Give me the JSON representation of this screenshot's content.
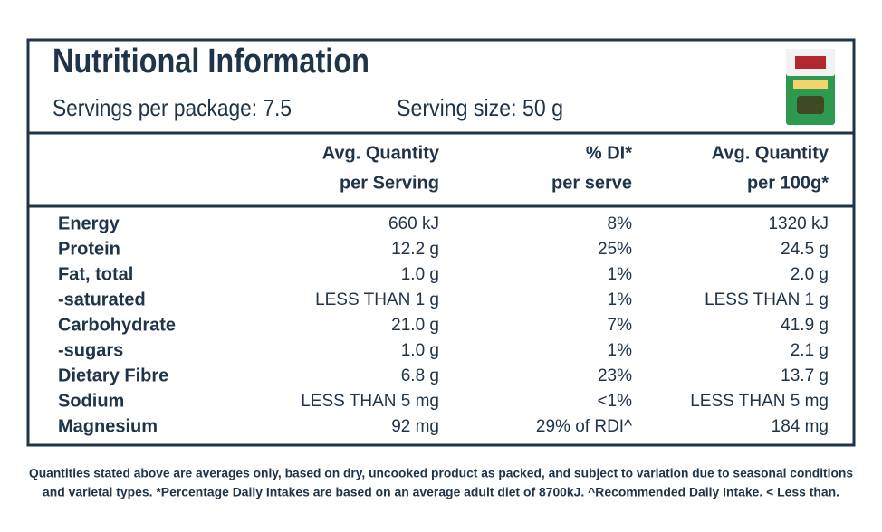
{
  "header": {
    "title": "Nutritional Information",
    "servings": "Servings per package: 7.5",
    "serving_size": "Serving size: 50 g"
  },
  "table": {
    "columns": [
      [
        "Avg. Quantity",
        "per Serving"
      ],
      [
        "% DI*",
        "per serve"
      ],
      [
        "Avg. Quantity",
        "per 100g*"
      ]
    ],
    "rows": [
      [
        "Energy",
        "660 kJ",
        "8%",
        "1320 kJ"
      ],
      [
        "Protein",
        "12.2 g",
        "25%",
        "24.5 g"
      ],
      [
        "Fat, total",
        "1.0 g",
        "1%",
        "2.0 g"
      ],
      [
        "-saturated",
        "LESS THAN 1 g",
        "1%",
        "LESS THAN 1 g"
      ],
      [
        "Carbohydrate",
        "21.0 g",
        "7%",
        "41.9 g"
      ],
      [
        "-sugars",
        "1.0 g",
        "1%",
        "2.1 g"
      ],
      [
        "Dietary Fibre",
        "6.8 g",
        "23%",
        "13.7 g"
      ],
      [
        "Sodium",
        "LESS THAN 5 mg",
        "<1%",
        "LESS THAN 5 mg"
      ],
      [
        "Magnesium",
        "92 mg",
        "29% of RDI^",
        "184 mg"
      ]
    ]
  },
  "footnote": [
    "Quantities stated above are averages only, based on dry, uncooked product as packed, and subject to variation due to seasonal conditions",
    "and varietal types. *Percentage Daily Intakes are based on an average adult diet of 8700kJ. ^Recommended Daily Intake. < Less than."
  ]
}
